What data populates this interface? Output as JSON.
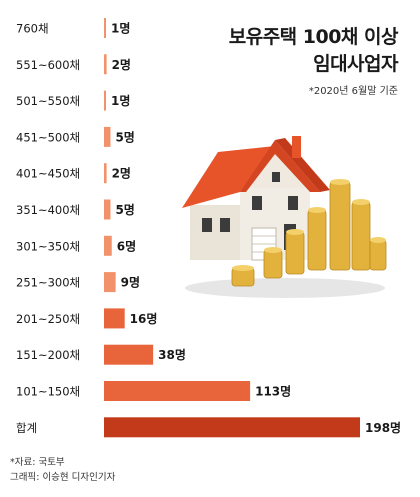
{
  "header": {
    "title_line1": "보유주택 100채 이상",
    "title_line2": "임대사업자",
    "note": "*2020년 6월말 기준"
  },
  "footer": {
    "source": "*자료: 국토부",
    "graphic": "그래픽: 이승현 디자인기자"
  },
  "colors": {
    "bar_light": "#f2926a",
    "bar_mid": "#e8643a",
    "bar_total": "#c23a1a",
    "roof": "#e8542a",
    "coin": "#e2b23c"
  },
  "illustration": "house-with-gold-coins",
  "chart_data": {
    "type": "bar",
    "orientation": "horizontal",
    "categories": [
      "760채",
      "551~600채",
      "501~550채",
      "451~500채",
      "401~450채",
      "351~400채",
      "301~350채",
      "251~300채",
      "201~250채",
      "151~200채",
      "101~150채",
      "합계"
    ],
    "values": [
      1,
      2,
      1,
      5,
      2,
      5,
      6,
      9,
      16,
      38,
      113,
      198
    ],
    "value_labels": [
      "1명",
      "2명",
      "1명",
      "5명",
      "2명",
      "5명",
      "6명",
      "9명",
      "16명",
      "38명",
      "113명",
      "198명"
    ],
    "title": "보유주택 100채 이상 임대사업자",
    "xlim": [
      0,
      198
    ],
    "grid": false
  }
}
